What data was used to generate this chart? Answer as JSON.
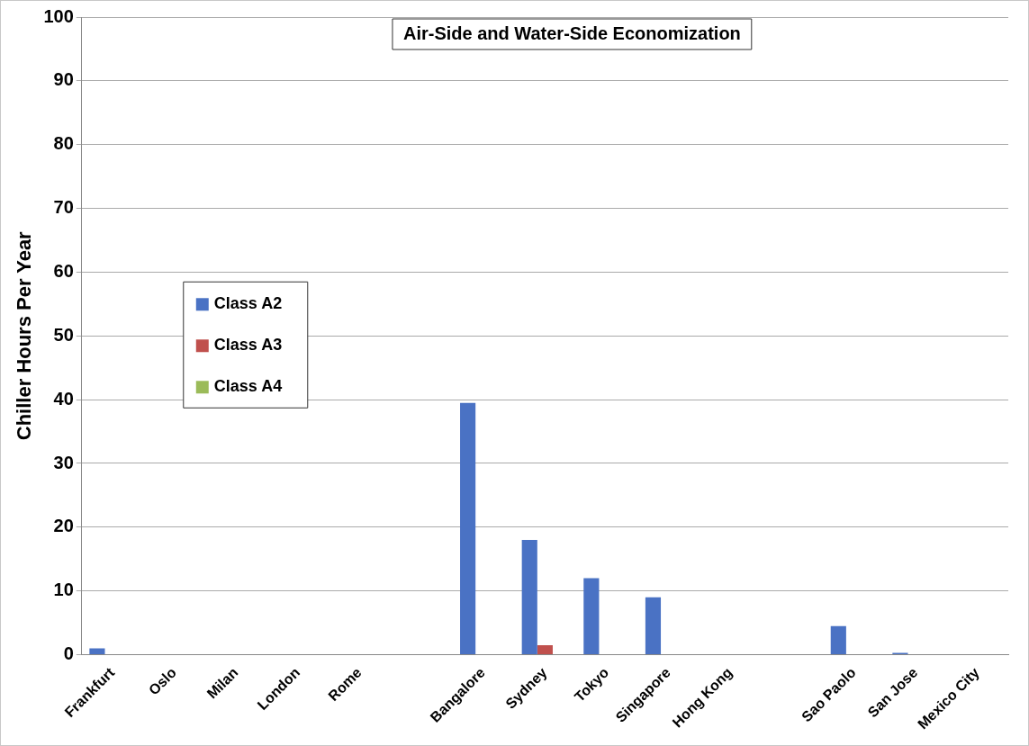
{
  "chart_data": {
    "type": "bar",
    "title": "Air-Side and Water-Side Economization",
    "ylabel": "Chiller Hours Per Year",
    "categories": [
      "Frankfurt",
      "Oslo",
      "Milan",
      "London",
      "Rome",
      null,
      "Bangalore",
      "Sydney",
      "Tokyo",
      "Singapore",
      "Hong Kong",
      null,
      "Sao Paolo",
      "San Jose",
      "Mexico City"
    ],
    "series": [
      {
        "name": "Class A2",
        "color": "#4a72c4",
        "values": [
          1,
          0,
          0,
          0,
          0,
          null,
          39.5,
          18,
          12,
          9,
          0,
          null,
          4.5,
          0.3,
          0
        ]
      },
      {
        "name": "Class A3",
        "color": "#c0504d",
        "values": [
          0,
          0,
          0,
          0,
          0,
          null,
          0,
          1.5,
          0,
          0,
          0,
          null,
          0,
          0,
          0
        ]
      },
      {
        "name": "Class A4",
        "color": "#9bbb59",
        "values": [
          0,
          0,
          0,
          0,
          0,
          null,
          0,
          0,
          0,
          0,
          0,
          null,
          0,
          0,
          0
        ]
      }
    ],
    "ylim": [
      0,
      100
    ],
    "yticks": [
      0,
      10,
      20,
      30,
      40,
      50,
      60,
      70,
      80,
      90,
      100
    ],
    "grid": "y",
    "legend": "left"
  }
}
